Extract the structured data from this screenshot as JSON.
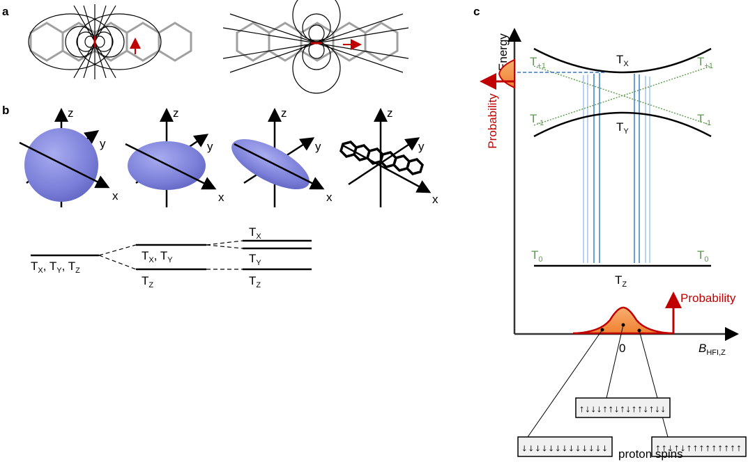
{
  "panels": {
    "a": {
      "letter": "a"
    },
    "b": {
      "letter": "b",
      "axis": {
        "x": "x",
        "y": "y",
        "z": "z"
      },
      "levels": {
        "t": "T",
        "x": "X",
        "y": "Y",
        "z": "Z",
        "comma": ", "
      }
    },
    "c": {
      "letter": "c",
      "y_axis_label": "Energy",
      "x_axis_label_main": "B",
      "x_axis_label_sub": "HFI,Z",
      "zero": "0",
      "probability": "Probability",
      "proton_spins": "proton spins",
      "levels": {
        "t": "T",
        "x": "X",
        "y": "Y",
        "z": "Z",
        "plus1": "+1",
        "minus1": "-1",
        "zero": "0"
      },
      "spin_boxes": [
        "↓↓↓↓↓↓↓↓↓↓↓↓↓",
        "↑↓↓↓↑↑↓↑↓↑↑↓↑↓↓",
        "↑↑↓↑↓↑↑↑↑↑↑↑↑↑"
      ]
    }
  },
  "colors": {
    "hexagon": "#a0a0a0",
    "ellipsoid": "#7b7fd8",
    "probability_red": "#c00000",
    "distribution_orange": "#f5a060",
    "level_green": "#5a9a4a",
    "arrow_blue": "#1a56b0"
  }
}
